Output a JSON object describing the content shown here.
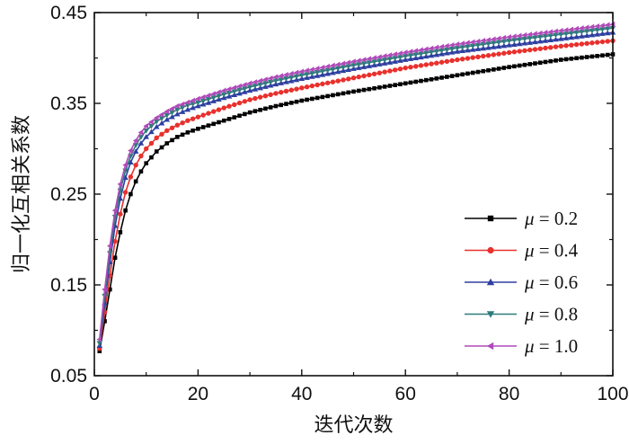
{
  "chart_data": {
    "type": "line",
    "xlabel": "迭代次数",
    "ylabel": "归一化互相关系数",
    "xlim": [
      0,
      100
    ],
    "ylim": [
      0.05,
      0.45
    ],
    "xticks": [
      0,
      20,
      40,
      60,
      80,
      100
    ],
    "yticks": [
      0.05,
      0.15,
      0.25,
      0.35,
      0.45
    ],
    "xtick_labels": [
      "0",
      "20",
      "40",
      "60",
      "80",
      "100"
    ],
    "ytick_labels": [
      "0.05",
      "0.15",
      "0.25",
      "0.35",
      "0.45"
    ],
    "grid": false,
    "legend_position": "right",
    "x": [
      1,
      2,
      3,
      4,
      5,
      6,
      7,
      8,
      9,
      10,
      12,
      14,
      16,
      18,
      20,
      25,
      30,
      35,
      40,
      50,
      60,
      70,
      80,
      90,
      100
    ],
    "series": [
      {
        "name": "μ = 0.2",
        "marker": "square",
        "color": "#000000",
        "values": [
          0.077,
          0.11,
          0.145,
          0.18,
          0.208,
          0.232,
          0.25,
          0.264,
          0.275,
          0.284,
          0.297,
          0.306,
          0.313,
          0.318,
          0.322,
          0.331,
          0.34,
          0.347,
          0.353,
          0.363,
          0.372,
          0.381,
          0.39,
          0.398,
          0.404
        ]
      },
      {
        "name": "μ = 0.4",
        "marker": "circle",
        "color": "#e8312d",
        "values": [
          0.08,
          0.12,
          0.16,
          0.198,
          0.228,
          0.252,
          0.269,
          0.282,
          0.292,
          0.3,
          0.312,
          0.32,
          0.326,
          0.331,
          0.335,
          0.345,
          0.354,
          0.361,
          0.367,
          0.378,
          0.389,
          0.398,
          0.406,
          0.413,
          0.419
        ]
      },
      {
        "name": "μ = 0.6",
        "marker": "triangle-up",
        "color": "#2e3fa0",
        "values": [
          0.083,
          0.13,
          0.175,
          0.215,
          0.245,
          0.268,
          0.285,
          0.297,
          0.306,
          0.313,
          0.324,
          0.332,
          0.338,
          0.343,
          0.347,
          0.356,
          0.364,
          0.371,
          0.377,
          0.388,
          0.398,
          0.407,
          0.414,
          0.421,
          0.428
        ]
      },
      {
        "name": "μ = 0.8",
        "marker": "triangle-down",
        "color": "#2e7b7c",
        "values": [
          0.086,
          0.138,
          0.185,
          0.225,
          0.254,
          0.276,
          0.292,
          0.304,
          0.313,
          0.32,
          0.33,
          0.337,
          0.343,
          0.348,
          0.351,
          0.36,
          0.368,
          0.375,
          0.381,
          0.392,
          0.402,
          0.411,
          0.419,
          0.426,
          0.433
        ]
      },
      {
        "name": "μ = 1.0",
        "marker": "triangle-left",
        "color": "#b04ab9",
        "values": [
          0.09,
          0.145,
          0.193,
          0.232,
          0.261,
          0.282,
          0.298,
          0.309,
          0.318,
          0.325,
          0.334,
          0.341,
          0.347,
          0.351,
          0.355,
          0.364,
          0.372,
          0.379,
          0.385,
          0.396,
          0.406,
          0.415,
          0.423,
          0.43,
          0.437
        ]
      }
    ],
    "legend": {
      "entries": [
        {
          "symbol": "μ",
          "text": " = 0.2"
        },
        {
          "symbol": "μ",
          "text": " = 0.4"
        },
        {
          "symbol": "μ",
          "text": " = 0.6"
        },
        {
          "symbol": "μ",
          "text": " = 0.8"
        },
        {
          "symbol": "μ",
          "text": " = 1.0"
        }
      ]
    }
  }
}
